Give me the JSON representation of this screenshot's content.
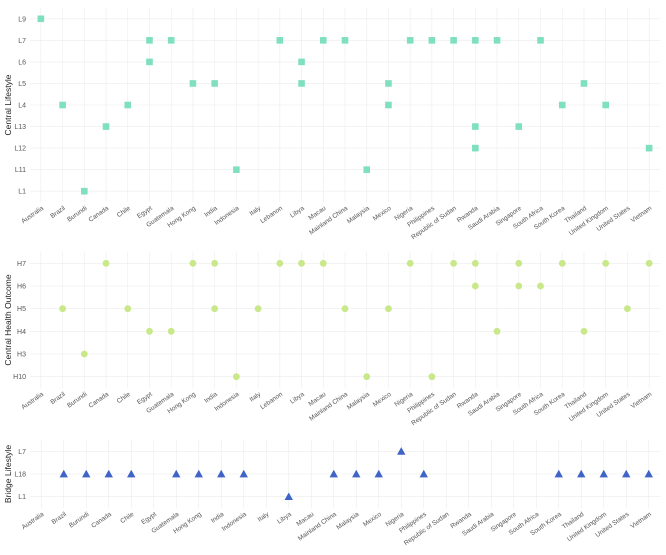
{
  "chart_data": [
    {
      "type": "scatter",
      "ylabel": "Central Lifestyle",
      "color": "#7fe0be",
      "marker": "square",
      "categories": [
        "Australia",
        "Brazil",
        "Burundi",
        "Canada",
        "Chile",
        "Egypt",
        "Guatemala",
        "Hong Kong",
        "India",
        "Indonesia",
        "Italy",
        "Lebanon",
        "Libya",
        "Macau",
        "Mainland China",
        "Malaysia",
        "Mexico",
        "Nigeria",
        "Philippines",
        "Republic of Sudan",
        "Rwanda",
        "Saudi Arabia",
        "Singapore",
        "South Africa",
        "South Korea",
        "Thailand",
        "United Kingdom",
        "United States",
        "Vietnam"
      ],
      "y_levels": [
        "L1",
        "L11",
        "L12",
        "L13",
        "L4",
        "L5",
        "L6",
        "L7",
        "L9"
      ],
      "points": [
        {
          "x": "Australia",
          "y": "L9"
        },
        {
          "x": "Brazil",
          "y": "L4"
        },
        {
          "x": "Burundi",
          "y": "L1"
        },
        {
          "x": "Canada",
          "y": "L13"
        },
        {
          "x": "Chile",
          "y": "L4"
        },
        {
          "x": "Egypt",
          "y": "L7"
        },
        {
          "x": "Egypt",
          "y": "L6"
        },
        {
          "x": "Guatemala",
          "y": "L7"
        },
        {
          "x": "Hong Kong",
          "y": "L5"
        },
        {
          "x": "India",
          "y": "L5"
        },
        {
          "x": "Indonesia",
          "y": "L11"
        },
        {
          "x": "Lebanon",
          "y": "L7"
        },
        {
          "x": "Libya",
          "y": "L6"
        },
        {
          "x": "Libya",
          "y": "L5"
        },
        {
          "x": "Macau",
          "y": "L7"
        },
        {
          "x": "Mainland China",
          "y": "L7"
        },
        {
          "x": "Malaysia",
          "y": "L11"
        },
        {
          "x": "Mexico",
          "y": "L5"
        },
        {
          "x": "Mexico",
          "y": "L4"
        },
        {
          "x": "Nigeria",
          "y": "L7"
        },
        {
          "x": "Philippines",
          "y": "L7"
        },
        {
          "x": "Republic of Sudan",
          "y": "L7"
        },
        {
          "x": "Rwanda",
          "y": "L7"
        },
        {
          "x": "Rwanda",
          "y": "L13"
        },
        {
          "x": "Rwanda",
          "y": "L12"
        },
        {
          "x": "Saudi Arabia",
          "y": "L7"
        },
        {
          "x": "Singapore",
          "y": "L13"
        },
        {
          "x": "South Africa",
          "y": "L7"
        },
        {
          "x": "South Korea",
          "y": "L4"
        },
        {
          "x": "Thailand",
          "y": "L5"
        },
        {
          "x": "United Kingdom",
          "y": "L4"
        },
        {
          "x": "Vietnam",
          "y": "L12"
        }
      ]
    },
    {
      "type": "scatter",
      "ylabel": "Central Health Outcome",
      "color": "#c8e88a",
      "marker": "circle",
      "categories": [
        "Australia",
        "Brazil",
        "Burundi",
        "Canada",
        "Chile",
        "Egypt",
        "Guatemala",
        "Hong Kong",
        "India",
        "Indonesia",
        "Italy",
        "Lebanon",
        "Libya",
        "Macau",
        "Mainland China",
        "Malaysia",
        "Mexico",
        "Nigeria",
        "Philippines",
        "Republic of Sudan",
        "Rwanda",
        "Saudi Arabia",
        "Singapore",
        "South Africa",
        "South Korea",
        "Thailand",
        "United Kingdom",
        "United States",
        "Vietnam"
      ],
      "y_levels": [
        "H10",
        "H3",
        "H4",
        "H5",
        "H6",
        "H7"
      ],
      "points": [
        {
          "x": "Brazil",
          "y": "H5"
        },
        {
          "x": "Burundi",
          "y": "H3"
        },
        {
          "x": "Canada",
          "y": "H7"
        },
        {
          "x": "Chile",
          "y": "H5"
        },
        {
          "x": "Egypt",
          "y": "H4"
        },
        {
          "x": "Guatemala",
          "y": "H4"
        },
        {
          "x": "Hong Kong",
          "y": "H7"
        },
        {
          "x": "India",
          "y": "H7"
        },
        {
          "x": "India",
          "y": "H5"
        },
        {
          "x": "Indonesia",
          "y": "H10"
        },
        {
          "x": "Italy",
          "y": "H5"
        },
        {
          "x": "Lebanon",
          "y": "H7"
        },
        {
          "x": "Libya",
          "y": "H7"
        },
        {
          "x": "Macau",
          "y": "H7"
        },
        {
          "x": "Mainland China",
          "y": "H5"
        },
        {
          "x": "Malaysia",
          "y": "H10"
        },
        {
          "x": "Mexico",
          "y": "H5"
        },
        {
          "x": "Nigeria",
          "y": "H7"
        },
        {
          "x": "Philippines",
          "y": "H10"
        },
        {
          "x": "Republic of Sudan",
          "y": "H7"
        },
        {
          "x": "Rwanda",
          "y": "H7"
        },
        {
          "x": "Rwanda",
          "y": "H6"
        },
        {
          "x": "Saudi Arabia",
          "y": "H4"
        },
        {
          "x": "Singapore",
          "y": "H7"
        },
        {
          "x": "Singapore",
          "y": "H6"
        },
        {
          "x": "South Africa",
          "y": "H6"
        },
        {
          "x": "South Korea",
          "y": "H7"
        },
        {
          "x": "Thailand",
          "y": "H4"
        },
        {
          "x": "United Kingdom",
          "y": "H7"
        },
        {
          "x": "United States",
          "y": "H5"
        },
        {
          "x": "Vietnam",
          "y": "H7"
        }
      ]
    },
    {
      "type": "scatter",
      "ylabel": "Bridge Lifestyle",
      "color": "#3f63c7",
      "marker": "triangle",
      "categories": [
        "Australia",
        "Brazil",
        "Burundi",
        "Canada",
        "Chile",
        "Egypt",
        "Guatemala",
        "Hong Kong",
        "India",
        "Indonesia",
        "Italy",
        "Libya",
        "Macau",
        "Mainland China",
        "Malaysia",
        "Mexico",
        "Nigeria",
        "Philippines",
        "Republic of Sudan",
        "Rwanda",
        "Saudi Arabia",
        "Singapore",
        "South Africa",
        "South Korea",
        "Thailand",
        "United Kingdom",
        "United States",
        "Vietnam"
      ],
      "y_levels": [
        "L1",
        "L18",
        "L7"
      ],
      "points": [
        {
          "x": "Brazil",
          "y": "L18"
        },
        {
          "x": "Burundi",
          "y": "L18"
        },
        {
          "x": "Canada",
          "y": "L18"
        },
        {
          "x": "Chile",
          "y": "L18"
        },
        {
          "x": "Guatemala",
          "y": "L18"
        },
        {
          "x": "Hong Kong",
          "y": "L18"
        },
        {
          "x": "India",
          "y": "L18"
        },
        {
          "x": "Indonesia",
          "y": "L18"
        },
        {
          "x": "Libya",
          "y": "L1"
        },
        {
          "x": "Mainland China",
          "y": "L18"
        },
        {
          "x": "Malaysia",
          "y": "L18"
        },
        {
          "x": "Mexico",
          "y": "L18"
        },
        {
          "x": "Nigeria",
          "y": "L7"
        },
        {
          "x": "Philippines",
          "y": "L18"
        },
        {
          "x": "South Korea",
          "y": "L18"
        },
        {
          "x": "Thailand",
          "y": "L18"
        },
        {
          "x": "United Kingdom",
          "y": "L18"
        },
        {
          "x": "United States",
          "y": "L18"
        },
        {
          "x": "Vietnam",
          "y": "L18"
        }
      ]
    }
  ]
}
